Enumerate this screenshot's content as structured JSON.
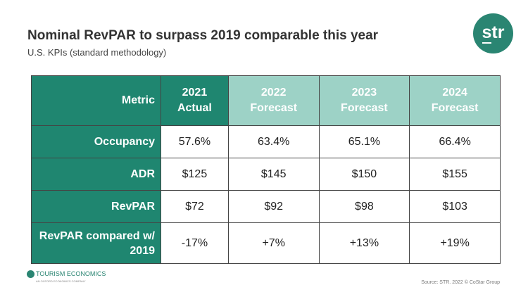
{
  "header": {
    "title": "Nominal RevPAR to surpass 2019 comparable this year",
    "subtitle": "U.S. KPIs (standard methodology)",
    "logo": "str"
  },
  "table": {
    "columns": [
      {
        "line1": "Metric",
        "line2": ""
      },
      {
        "line1": "2021",
        "line2": "Actual"
      },
      {
        "line1": "2022",
        "line2": "Forecast"
      },
      {
        "line1": "2023",
        "line2": "Forecast"
      },
      {
        "line1": "2024",
        "line2": "Forecast"
      }
    ],
    "rows": [
      {
        "label": "Occupancy",
        "values": [
          "57.6%",
          "63.4%",
          "65.1%",
          "66.4%"
        ]
      },
      {
        "label": "ADR",
        "values": [
          "$125",
          "$145",
          "$150",
          "$155"
        ]
      },
      {
        "label": "RevPAR",
        "values": [
          "$72",
          "$92",
          "$98",
          "$103"
        ]
      },
      {
        "label": "RevPAR compared w/ 2019",
        "values": [
          "-17%",
          "+7%",
          "+13%",
          "+19%"
        ]
      }
    ]
  },
  "colors": {
    "dark_green": "#1f8670",
    "light_teal": "#9dd2c6"
  },
  "footer": {
    "partner_logo": "TOURISM ECONOMICS",
    "partner_tagline": "AN OXFORD ECONOMICS COMPANY",
    "source": "Source: STR. 2022 © CoStar Group"
  }
}
